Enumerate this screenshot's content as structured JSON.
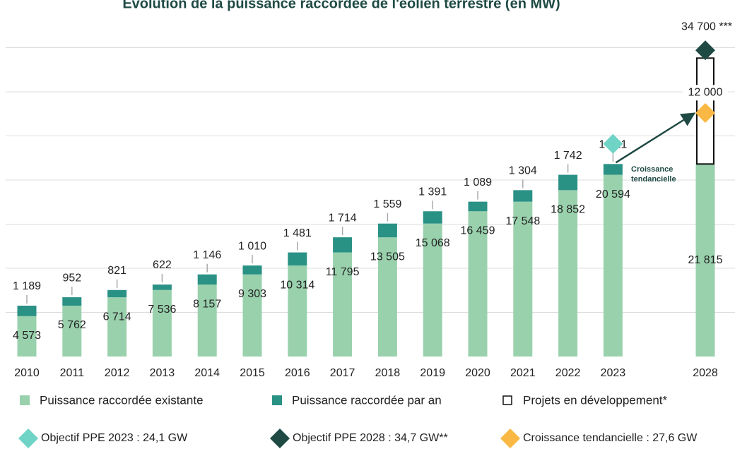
{
  "chart_data": {
    "type": "bar",
    "title": "Évolution de la puissance raccordée de l'éolien terrestre (en MW)",
    "categories": [
      "2010",
      "2011",
      "2012",
      "2013",
      "2014",
      "2015",
      "2016",
      "2017",
      "2018",
      "2019",
      "2020",
      "2021",
      "2022",
      "2023",
      "2028"
    ],
    "series": [
      {
        "name": "Puissance raccordée existante",
        "color": "#99d1ad",
        "values": [
          4573,
          5762,
          6714,
          7536,
          8157,
          9303,
          10314,
          11795,
          13505,
          15068,
          16459,
          17548,
          18852,
          20594,
          21815
        ],
        "value_labels": [
          "4 573",
          "5 762",
          "6 714",
          "7 536",
          "8 157",
          "9 303",
          "10 314",
          "11 795",
          "13 505",
          "15 068",
          "16 459",
          "17 548",
          "18 852",
          "20 594",
          "21 815"
        ]
      },
      {
        "name": "Puissance raccordée par an",
        "color": "#2a9185",
        "values": [
          1189,
          952,
          821,
          622,
          1146,
          1010,
          1481,
          1714,
          1559,
          1391,
          1089,
          1304,
          1742,
          1221,
          null
        ],
        "value_labels": [
          "1 189",
          "952",
          "821",
          "622",
          "1 146",
          "1 010",
          "1 481",
          "1 714",
          "1 559",
          "1 391",
          "1 089",
          "1 304",
          "1 742",
          "1 221",
          null
        ]
      },
      {
        "name": "Projets en développement*",
        "color": "#ffffff",
        "values": [
          null,
          null,
          null,
          null,
          null,
          null,
          null,
          null,
          null,
          null,
          null,
          null,
          null,
          null,
          12000
        ],
        "value_labels": [
          null,
          null,
          null,
          null,
          null,
          null,
          null,
          null,
          null,
          null,
          null,
          null,
          null,
          null,
          "12 000"
        ]
      }
    ],
    "markers": [
      {
        "name": "Objectif PPE 2023 : 24,1 GW",
        "color": "#6fd3c6",
        "values": [
          null,
          null,
          null,
          null,
          null,
          null,
          null,
          null,
          null,
          null,
          null,
          null,
          null,
          24100,
          null
        ]
      },
      {
        "name": "Objectif PPE 2028 : 34,7 GW**",
        "color": "#1f4a44",
        "values": [
          null,
          null,
          null,
          null,
          null,
          null,
          null,
          null,
          null,
          null,
          null,
          null,
          null,
          null,
          34700
        ],
        "value_labels": [
          null,
          null,
          null,
          null,
          null,
          null,
          null,
          null,
          null,
          null,
          null,
          null,
          null,
          null,
          "34 700 ***"
        ]
      },
      {
        "name": "Croissance tendancielle : 27,6 GW",
        "color": "#f9b843",
        "values": [
          null,
          null,
          null,
          null,
          null,
          null,
          null,
          null,
          null,
          null,
          null,
          null,
          null,
          null,
          27600
        ]
      }
    ],
    "annotation": [
      "Croissance",
      "tendancielle"
    ],
    "ylim": [
      0,
      40000
    ],
    "yticks": [
      5000,
      10000,
      15000,
      20000,
      25000,
      30000,
      35000
    ],
    "grid": true
  }
}
